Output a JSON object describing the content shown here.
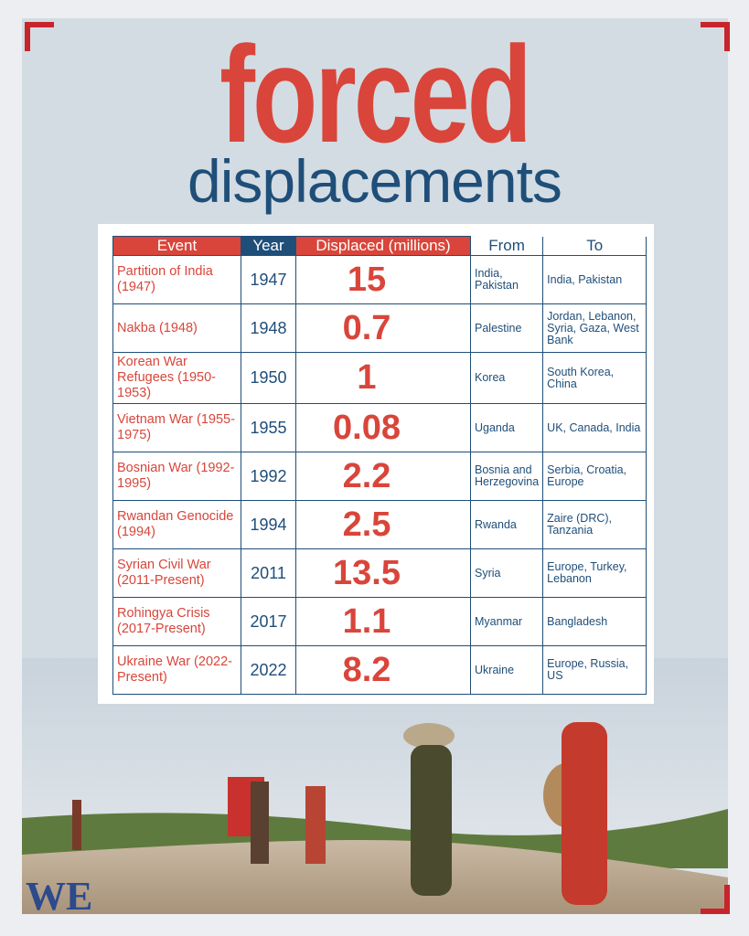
{
  "header": {
    "title": "forced",
    "subtitle": "displacements"
  },
  "table": {
    "columns": [
      "Event",
      "Year",
      "Displaced (millions)",
      "From",
      "To"
    ],
    "rows": [
      [
        "Partition of India (1947)",
        "1947",
        "15",
        "India, Pakistan",
        "India, Pakistan"
      ],
      [
        "Nakba (1948)",
        "1948",
        "0.7",
        "Palestine",
        "Jordan, Lebanon, Syria, Gaza, West Bank"
      ],
      [
        "Korean War Refugees (1950-1953)",
        "1950",
        "1",
        "Korea",
        "South Korea, China"
      ],
      [
        "Vietnam War (1955-1975)",
        "1955",
        "0.08",
        "Uganda",
        "UK, Canada, India"
      ],
      [
        "Bosnian War (1992-1995)",
        "1992",
        "2.2",
        "Bosnia and Herzegovina",
        "Serbia, Croatia, Europe"
      ],
      [
        "Rwandan Genocide (1994)",
        "1994",
        "2.5",
        "Rwanda",
        "Zaire (DRC), Tanzania"
      ],
      [
        "Syrian Civil War (2011-Present)",
        "2011",
        "13.5",
        "Syria",
        "Europe, Turkey, Lebanon"
      ],
      [
        "Rohingya Crisis (2017-Present)",
        "2017",
        "1.1",
        "Myanmar",
        "Bangladesh"
      ],
      [
        "Ukraine War (2022-Present)",
        "2022",
        "8.2",
        "Ukraine",
        "Europe, Russia, US"
      ]
    ]
  },
  "logo": "WE"
}
